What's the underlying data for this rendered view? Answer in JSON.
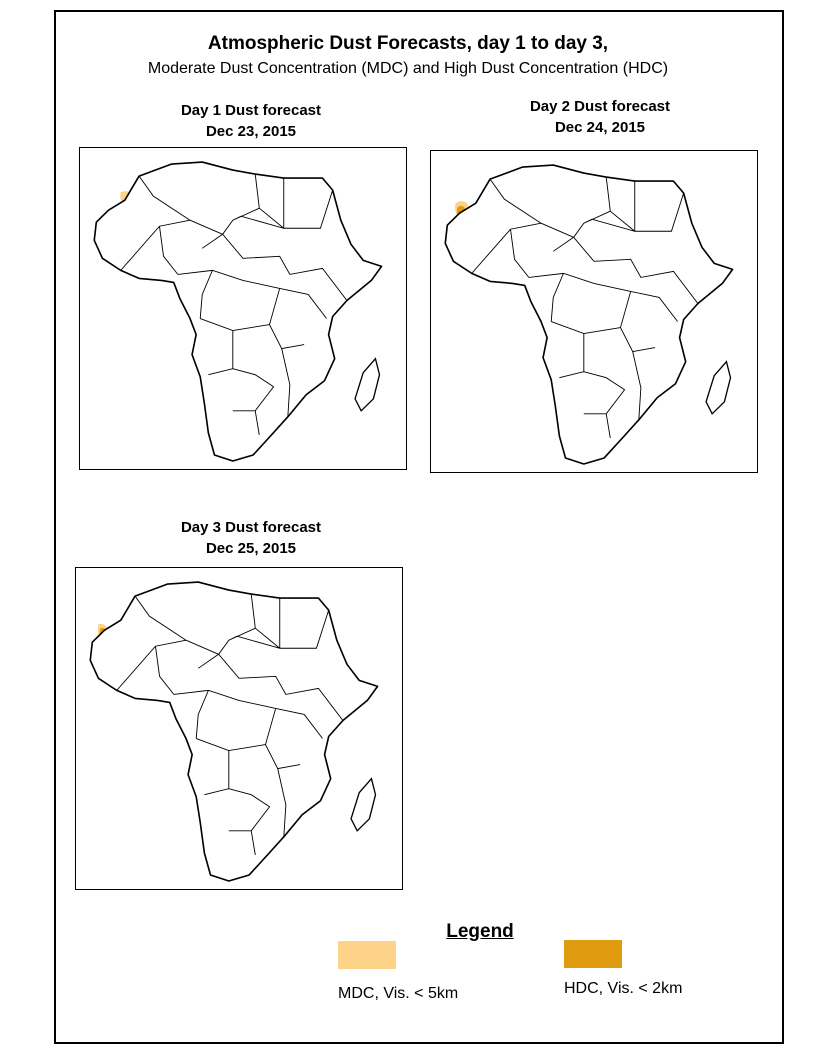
{
  "title": "Atmospheric Dust Forecasts, day 1 to day 3,",
  "subtitle": "Moderate Dust Concentration (MDC) and High Dust Concentration (HDC)",
  "colors": {
    "mdc": "#fdd38a",
    "hdc": "#e09a10"
  },
  "panels": [
    {
      "heading": "Day 1 Dust forecast",
      "date": "Dec 23, 2015"
    },
    {
      "heading": "Day 2 Dust forecast",
      "date": "Dec 24,  2015"
    },
    {
      "heading": "Day 3 Dust forecast",
      "date": "Dec 25, 2015"
    }
  ],
  "legend": {
    "title": "Legend",
    "mdc_label": "MDC, Vis. < 5km",
    "hdc_label": "HDC, Vis. < 2km"
  }
}
